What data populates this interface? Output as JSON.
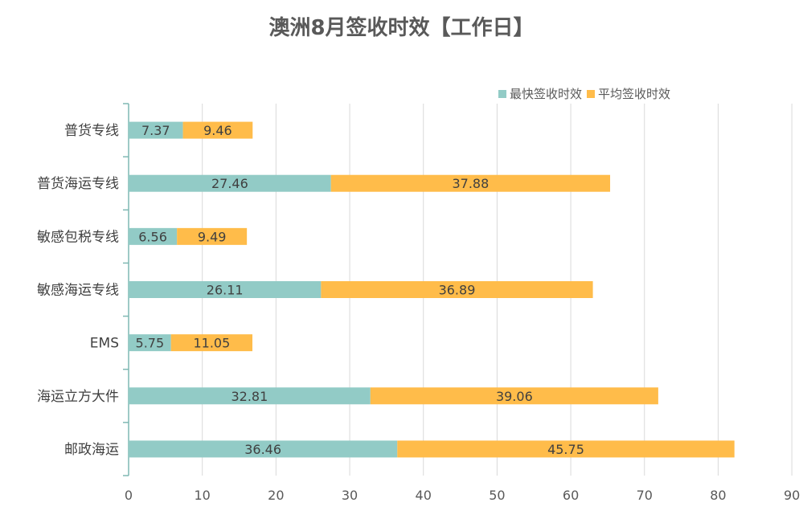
{
  "colors": {
    "fast": "#92CBC6",
    "avg": "#FFBC4A",
    "grid": "#D9D9D9",
    "axis": "#7FB8B3",
    "text": "#595959",
    "label": "#404040"
  },
  "chart_data": {
    "type": "bar",
    "orientation": "horizontal",
    "stacked": true,
    "title": "澳洲8月签收时效【工作日】",
    "categories": [
      "普货专线",
      "普货海运专线",
      "敏感包税专线",
      "敏感海运专线",
      "EMS",
      "海运立方大件",
      "邮政海运"
    ],
    "series": [
      {
        "name": "最快签收时效",
        "values": [
          7.37,
          27.46,
          6.56,
          26.11,
          5.75,
          32.81,
          36.46
        ]
      },
      {
        "name": "平均签收时效",
        "values": [
          9.46,
          37.88,
          9.49,
          36.89,
          11.05,
          39.06,
          45.75
        ]
      }
    ],
    "x_ticks": [
      "0",
      "10",
      "20",
      "30",
      "40",
      "50",
      "60",
      "70",
      "80",
      "90"
    ],
    "xlim": [
      0,
      90
    ],
    "grid": true,
    "legend_position": "top-right",
    "data_labels": true
  }
}
